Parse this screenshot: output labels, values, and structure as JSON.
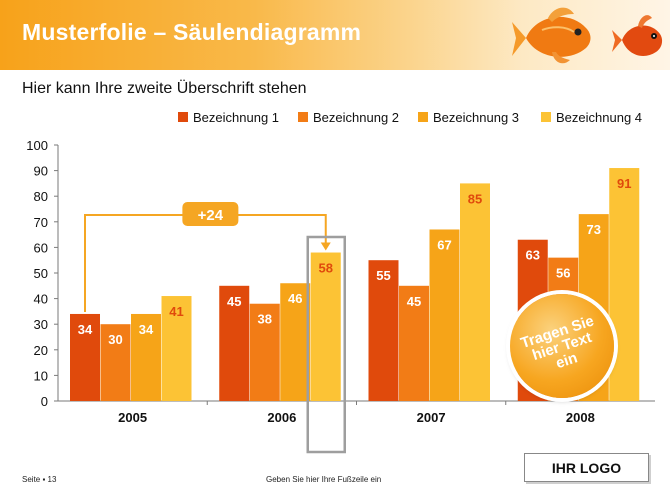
{
  "slide": {
    "title": "Musterfolie – Säulendiagramm",
    "subtitle": "Hier kann Ihre zweite Überschrift stehen"
  },
  "footer": {
    "page": "Seite ▪ 13",
    "text": "Geben Sie hier Ihre Fußzeile ein",
    "logo": "IHR LOGO"
  },
  "sticker": {
    "text": "Tragen Sie hier Text ein"
  },
  "annotation": {
    "label": "+24"
  },
  "colors": {
    "header": "#f7a21a",
    "series": [
      "#e04a0c",
      "#f27c16",
      "#f6a418",
      "#fcc335"
    ],
    "annotation": "#f5a623",
    "highlight_box": "#9e9e9e"
  },
  "icons": [
    "goldfish-icon",
    "goldfish-icon"
  ],
  "chart_data": {
    "type": "bar",
    "categories": [
      "2005",
      "2006",
      "2007",
      "2008"
    ],
    "series": [
      {
        "name": "Bezeichnung 1",
        "values": [
          34,
          45,
          55,
          63
        ]
      },
      {
        "name": "Bezeichnung 2",
        "values": [
          30,
          38,
          45,
          56
        ]
      },
      {
        "name": "Bezeichnung 3",
        "values": [
          34,
          46,
          67,
          73
        ]
      },
      {
        "name": "Bezeichnung 4",
        "values": [
          41,
          58,
          85,
          91
        ]
      }
    ],
    "ylim": [
      0,
      100
    ],
    "yticks": [
      0,
      10,
      20,
      30,
      40,
      50,
      60,
      70,
      80,
      90,
      100
    ],
    "grid": false,
    "legend": "top-right",
    "title": "",
    "xlabel": "",
    "ylabel": ""
  }
}
